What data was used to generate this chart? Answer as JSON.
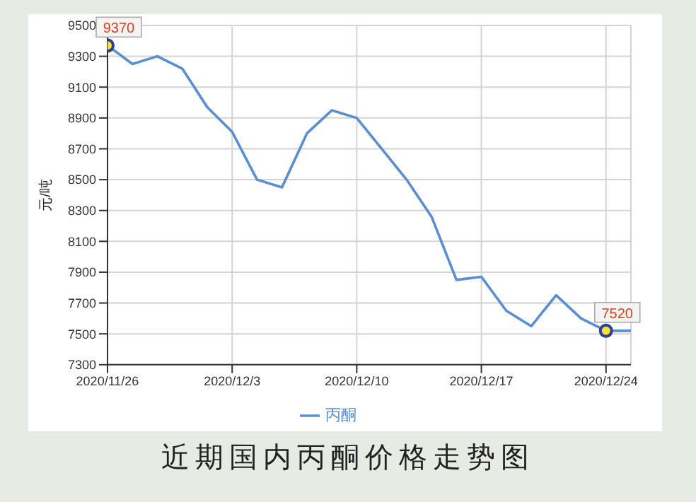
{
  "chart_data": {
    "type": "line",
    "title": "近期国内丙酮价格走势图",
    "ylabel": "元/吨",
    "categories": [
      "2020/11/26",
      null,
      null,
      null,
      null,
      "2020/12/3",
      null,
      null,
      null,
      null,
      "2020/12/10",
      null,
      null,
      null,
      null,
      "2020/12/17",
      null,
      null,
      null,
      null,
      "2020/12/24",
      null
    ],
    "series": [
      {
        "name": "丙酮",
        "color": "#5a8ed2",
        "values": [
          9370,
          9250,
          9300,
          9220,
          8970,
          8810,
          8500,
          8450,
          8800,
          8950,
          8900,
          8700,
          8500,
          8260,
          7850,
          7870,
          7650,
          7550,
          7750,
          7600,
          7520,
          7520
        ],
        "value_labels": [
          "9370",
          null,
          null,
          null,
          null,
          null,
          null,
          null,
          null,
          null,
          null,
          null,
          null,
          null,
          null,
          null,
          null,
          null,
          null,
          null,
          "7520",
          null
        ]
      }
    ],
    "ylim": [
      7300,
      9500
    ],
    "yticks": [
      7300,
      7500,
      7700,
      7900,
      8100,
      8300,
      8500,
      8700,
      8900,
      9100,
      9300,
      9500
    ],
    "grid": true,
    "legend": "bottom",
    "marker": "none",
    "line_style": "solid"
  }
}
